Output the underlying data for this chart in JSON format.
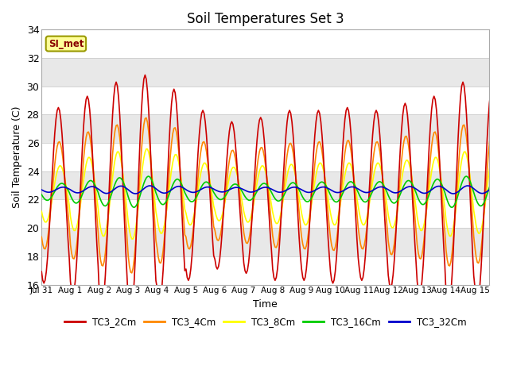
{
  "title": "Soil Temperatures Set 3",
  "xlabel": "Time",
  "ylabel": "Soil Temperature (C)",
  "ylim": [
    16,
    34
  ],
  "yticks": [
    16,
    18,
    20,
    22,
    24,
    26,
    28,
    30,
    32,
    34
  ],
  "xtick_labels": [
    "Jul 31",
    "Aug 1",
    "Aug 2",
    "Aug 3",
    "Aug 4",
    "Aug 5",
    "Aug 6",
    "Aug 7",
    "Aug 8",
    "Aug 9",
    "Aug 10",
    "Aug 11",
    "Aug 12",
    "Aug 13",
    "Aug 14",
    "Aug 15"
  ],
  "colors": {
    "TC3_2Cm": "#cc0000",
    "TC3_4Cm": "#ff8800",
    "TC3_8Cm": "#ffff00",
    "TC3_16Cm": "#00cc00",
    "TC3_32Cm": "#0000cc"
  },
  "legend_label": "SI_met",
  "plot_bg": "#ffffff",
  "band_odd_color": "#e8e8e8",
  "band_even_color": "#ffffff",
  "line_width": 1.2,
  "title_fontsize": 12,
  "axis_fontsize": 9,
  "label_fontsize": 9
}
